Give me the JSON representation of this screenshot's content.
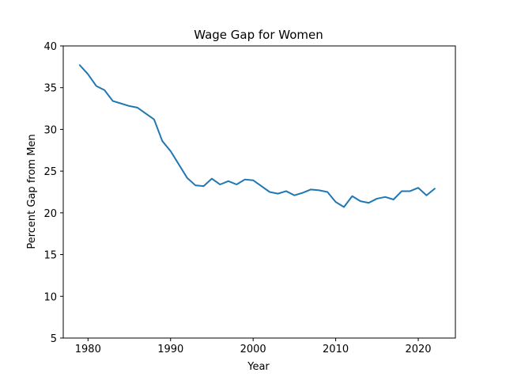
{
  "chart_data": {
    "type": "line",
    "title": "Wage Gap for Women",
    "xlabel": "Year",
    "ylabel": "Percent Gap from Men",
    "xlim": [
      1977,
      2024.5
    ],
    "ylim": [
      5,
      40
    ],
    "xticks": [
      1980,
      1990,
      2000,
      2010,
      2020
    ],
    "yticks": [
      5,
      10,
      15,
      20,
      25,
      30,
      35,
      40
    ],
    "grid": false,
    "legend": "none",
    "series": [
      {
        "color": "#1f77b4",
        "x": [
          1979,
          1980,
          1981,
          1982,
          1983,
          1984,
          1985,
          1986,
          1987,
          1988,
          1989,
          1990,
          1991,
          1992,
          1993,
          1994,
          1995,
          1996,
          1997,
          1998,
          1999,
          2000,
          2001,
          2002,
          2003,
          2004,
          2005,
          2006,
          2007,
          2008,
          2009,
          2010,
          2011,
          2012,
          2013,
          2014,
          2015,
          2016,
          2017,
          2018,
          2019,
          2020,
          2021,
          2022
        ],
        "y": [
          37.7,
          36.6,
          35.2,
          34.7,
          33.4,
          33.1,
          32.8,
          32.6,
          31.9,
          31.2,
          28.6,
          27.4,
          25.8,
          24.2,
          23.3,
          23.2,
          24.1,
          23.4,
          23.8,
          23.4,
          24.0,
          23.9,
          23.2,
          22.5,
          22.3,
          22.6,
          22.1,
          22.4,
          22.8,
          22.7,
          22.5,
          21.3,
          20.7,
          22.0,
          21.4,
          21.2,
          21.7,
          21.9,
          21.6,
          22.6,
          22.6,
          23.0,
          22.1,
          22.9
        ]
      }
    ]
  }
}
